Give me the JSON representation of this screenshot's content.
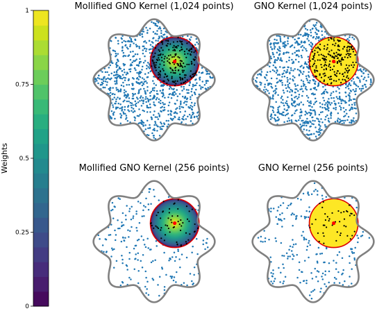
{
  "colorbar": {
    "label": "Weights",
    "ticks": [
      "0",
      "0.25",
      "0.5",
      "0.75",
      "1"
    ],
    "tick_values": [
      0,
      0.25,
      0.5,
      0.75,
      1
    ],
    "range": [
      0,
      1
    ],
    "colormap": "viridis",
    "levels": 20
  },
  "chart_data": [
    {
      "type": "scatter",
      "title": "Mollified GNO Kernel (1,024 points)",
      "points": 1024,
      "kernel": "mollified",
      "domain_shape": "eight-lobed flower"
    },
    {
      "type": "scatter",
      "title": "GNO Kernel (1,024 points)",
      "points": 1024,
      "kernel": "indicator",
      "domain_shape": "eight-lobed flower"
    },
    {
      "type": "scatter",
      "title": "Mollified GNO Kernel (256 points)",
      "points": 256,
      "kernel": "mollified",
      "domain_shape": "eight-lobed flower"
    },
    {
      "type": "scatter",
      "title": "GNO Kernel (256 points)",
      "points": 256,
      "kernel": "indicator",
      "domain_shape": "eight-lobed flower"
    }
  ],
  "colors": {
    "points": "#1f77b4",
    "inside_points": "#000000",
    "center": "#ff0000",
    "circle_edge": "#dd0000",
    "boundary": "#808080",
    "indicator_fill": "#fde725"
  }
}
